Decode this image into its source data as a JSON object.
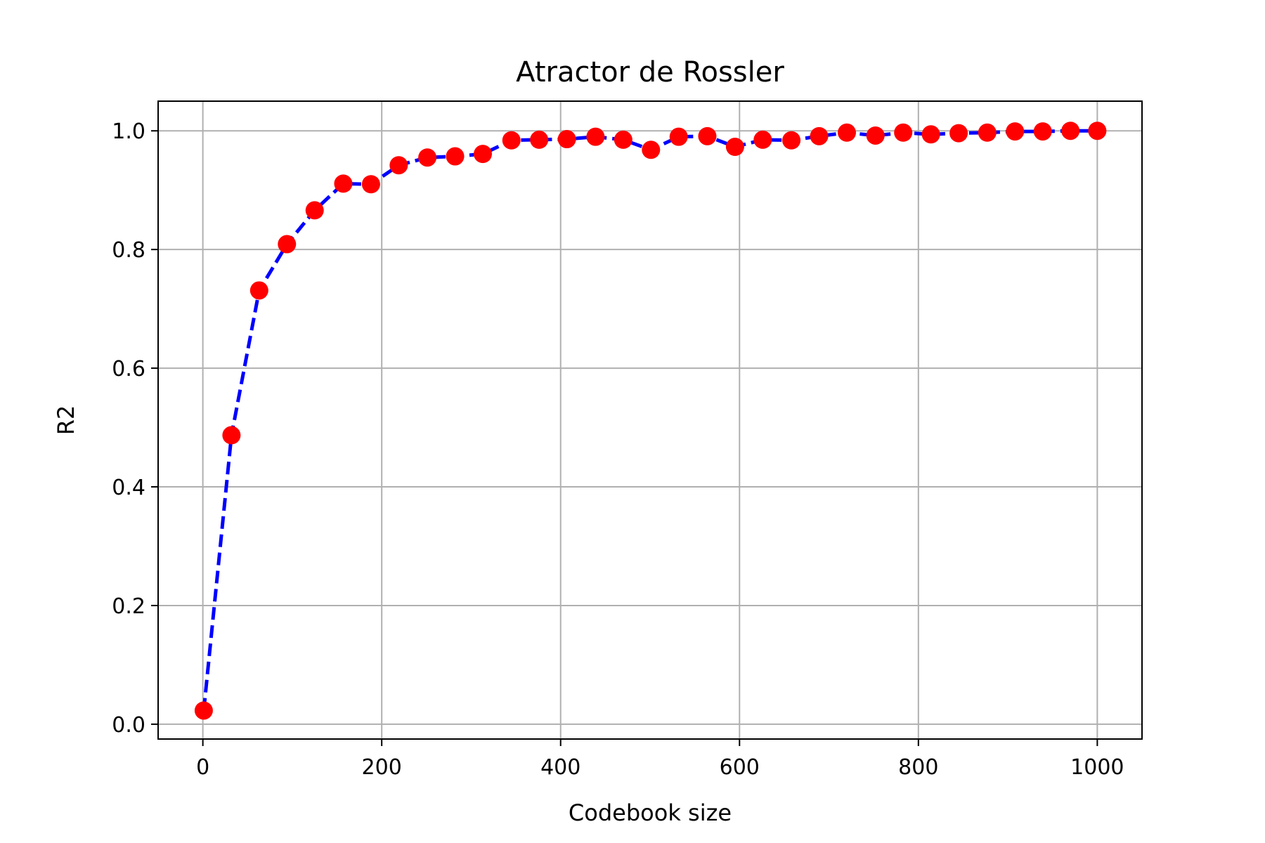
{
  "chart_data": {
    "type": "line",
    "title": "Atractor de Rossler",
    "xlabel": "Codebook size",
    "ylabel": "R2",
    "xlim": [
      -50,
      1050
    ],
    "ylim": [
      -0.025,
      1.05
    ],
    "x_ticks": [
      0,
      200,
      400,
      600,
      800,
      1000
    ],
    "y_ticks": [
      0.0,
      0.2,
      0.4,
      0.6,
      0.8,
      1.0
    ],
    "x_tick_labels": [
      "0",
      "200",
      "400",
      "600",
      "800",
      "1000"
    ],
    "y_tick_labels": [
      "0.0",
      "0.2",
      "0.4",
      "0.6",
      "0.8",
      "1.0"
    ],
    "grid": true,
    "series": [
      {
        "line_color": "#0000ff",
        "line_style": "dashed",
        "marker_color": "#ff0000",
        "marker": "circle",
        "x": [
          1,
          32,
          63,
          94,
          125,
          157,
          188,
          219,
          251,
          282,
          313,
          345,
          376,
          407,
          439,
          470,
          501,
          532,
          564,
          595,
          626,
          658,
          689,
          720,
          752,
          783,
          814,
          845,
          877,
          908,
          939,
          970,
          1000
        ],
        "y": [
          0.023,
          0.487,
          0.731,
          0.809,
          0.866,
          0.911,
          0.91,
          0.942,
          0.955,
          0.957,
          0.961,
          0.984,
          0.985,
          0.986,
          0.99,
          0.985,
          0.968,
          0.99,
          0.991,
          0.973,
          0.985,
          0.984,
          0.991,
          0.997,
          0.992,
          0.997,
          0.994,
          0.996,
          0.997,
          0.999,
          0.999,
          1.0,
          1.0
        ]
      }
    ]
  }
}
